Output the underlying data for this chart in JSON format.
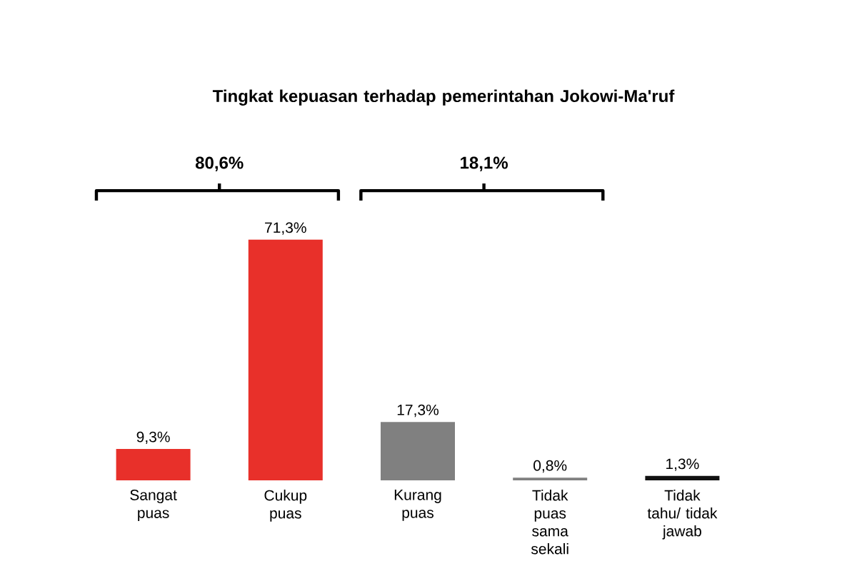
{
  "chart_data": {
    "type": "bar",
    "title": "Tingkat kepuasan terhadap pemerintahan Jokowi-Ma'ruf",
    "categories": [
      "Sangat puas",
      "Cukup puas",
      "Kurang puas",
      "Tidak puas sama sekali",
      "Tidak tahu/ tidak jawab"
    ],
    "values": [
      9.3,
      71.3,
      17.3,
      0.8,
      1.3
    ],
    "colors": [
      "#e8302a",
      "#e8302a",
      "#808080",
      "#808080",
      "#111111"
    ],
    "value_labels": [
      "9,3%",
      "71,3%",
      "17,3%",
      "0,8%",
      "1,3%"
    ],
    "annotations": [
      "80,6%",
      "18,1%"
    ]
  }
}
